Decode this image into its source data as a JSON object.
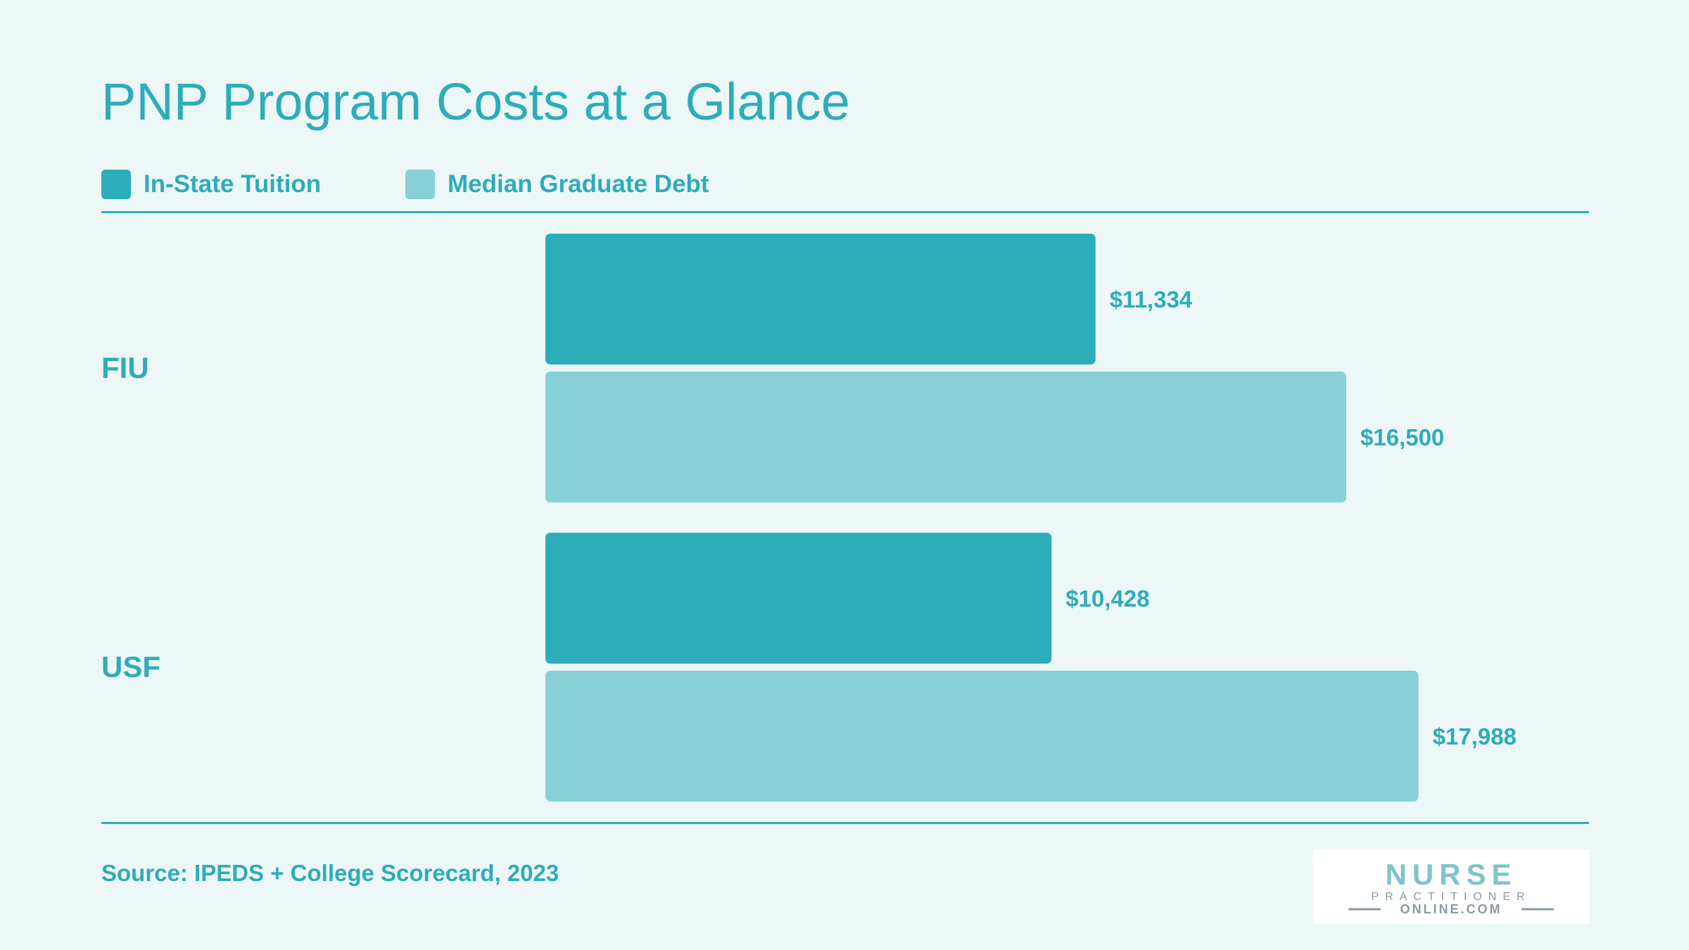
{
  "title": "PNP Program Costs at a Glance",
  "source": "Source: IPEDS + College Scorecard, 2023",
  "logo": {
    "line1": "NURSE",
    "line2": "PRACTITIONER",
    "line3": "ONLINE.COM"
  },
  "colors": {
    "accent": "#2dacba",
    "tuition": "#2dacba",
    "debt": "#87d1d6",
    "background": "#eef7f8"
  },
  "chart_data": {
    "type": "bar",
    "orientation": "horizontal",
    "title": "PNP Program Costs at a Glance",
    "categories": [
      "FIU",
      "USF"
    ],
    "series": [
      {
        "name": "In-State Tuition",
        "values": [
          11334,
          10428
        ],
        "labels": [
          "$11,334",
          "$10,428"
        ]
      },
      {
        "name": "Median Graduate Debt",
        "values": [
          16500,
          17988
        ],
        "labels": [
          "$16,500",
          "$17,988"
        ]
      }
    ],
    "xlim": [
      0,
      20000
    ],
    "grid": false,
    "legend_position": "top-left"
  }
}
